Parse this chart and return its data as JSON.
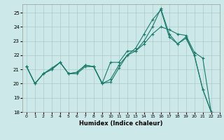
{
  "xlabel": "Humidex (Indice chaleur)",
  "bg_color": "#cce8e8",
  "grid_color": "#aacccc",
  "line_color": "#1a7a6a",
  "xlim": [
    -0.5,
    23
  ],
  "ylim": [
    18,
    25.6
  ],
  "yticks": [
    18,
    19,
    20,
    21,
    22,
    23,
    24,
    25
  ],
  "xticks": [
    0,
    1,
    2,
    3,
    4,
    5,
    6,
    7,
    8,
    9,
    10,
    11,
    12,
    13,
    14,
    15,
    16,
    17,
    18,
    19,
    20,
    21,
    22,
    23
  ],
  "series1_x": [
    0,
    1,
    2,
    3,
    4,
    5,
    6,
    7,
    8,
    9,
    10,
    11,
    12,
    13,
    14,
    15,
    16,
    17,
    18,
    19,
    20,
    21,
    22
  ],
  "series1_y": [
    21.2,
    20.0,
    20.7,
    21.0,
    21.5,
    20.7,
    20.8,
    21.3,
    21.2,
    20.0,
    21.5,
    21.5,
    22.3,
    22.3,
    23.0,
    24.0,
    25.3,
    23.5,
    22.8,
    23.2,
    22.0,
    19.6,
    18.0
  ],
  "series2_x": [
    0,
    1,
    2,
    3,
    4,
    5,
    6,
    7,
    8,
    9,
    10,
    11,
    12,
    13,
    14,
    15,
    16,
    17,
    18,
    19,
    20,
    21,
    22
  ],
  "series2_y": [
    21.2,
    20.0,
    20.7,
    21.1,
    21.5,
    20.7,
    20.7,
    21.2,
    21.2,
    20.0,
    20.3,
    21.3,
    22.0,
    22.5,
    23.5,
    24.5,
    25.2,
    23.3,
    22.8,
    23.3,
    22.0,
    19.6,
    18.0
  ],
  "series3_x": [
    0,
    1,
    2,
    3,
    4,
    5,
    6,
    7,
    8,
    9,
    10,
    11,
    12,
    13,
    14,
    15,
    16,
    17,
    18,
    19,
    20,
    21,
    22
  ],
  "series3_y": [
    21.2,
    20.0,
    20.7,
    21.0,
    21.5,
    20.7,
    20.8,
    21.3,
    21.2,
    20.05,
    20.1,
    21.1,
    22.0,
    22.3,
    22.8,
    23.5,
    24.0,
    23.8,
    23.5,
    23.4,
    22.2,
    21.8,
    18.0
  ]
}
